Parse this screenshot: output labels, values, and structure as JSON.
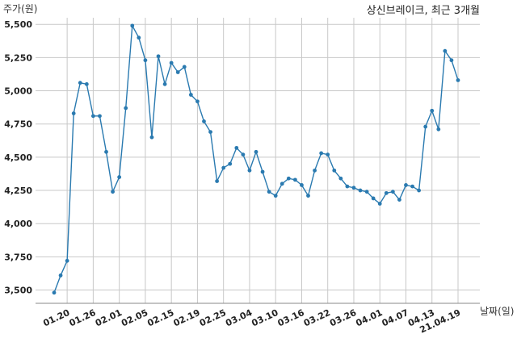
{
  "chart_data": {
    "type": "line",
    "title": "상신브레이크, 최근 3개월",
    "ylabel": "주가(원)",
    "xlabel": "날짜(일)",
    "ylim": [
      3400,
      5550
    ],
    "yticks": [
      "3,500",
      "3,750",
      "4,000",
      "4,250",
      "4,500",
      "4,750",
      "5,000",
      "5,250",
      "5,500"
    ],
    "ytick_values": [
      3500,
      3750,
      4000,
      4250,
      4500,
      4750,
      5000,
      5250,
      5500
    ],
    "xticks": [
      "01.20",
      "01.26",
      "02.01",
      "02.05",
      "02.15",
      "02.19",
      "02.25",
      "03.04",
      "03.10",
      "03.16",
      "03.22",
      "03.26",
      "04.01",
      "04.07",
      "04.13",
      "21.04.19"
    ],
    "xtick_index": [
      2,
      6,
      10,
      14,
      18,
      22,
      26,
      30,
      34,
      38,
      42,
      46,
      50,
      54,
      58,
      62
    ],
    "grid": true,
    "color": "#2a7ab0",
    "series": [
      {
        "values": [
          3480,
          3610,
          3720,
          4830,
          5060,
          5050,
          4810,
          4810,
          4540,
          4240,
          4350,
          4870,
          5490,
          5400,
          5230,
          4650,
          5260,
          5050,
          5210,
          5140,
          5180,
          4970,
          4920,
          4770,
          4690,
          4320,
          4420,
          4450,
          4570,
          4520,
          4400,
          4540,
          4390,
          4240,
          4210,
          4300,
          4340,
          4330,
          4290,
          4210,
          4400,
          4530,
          4520,
          4400,
          4340,
          4280,
          4270,
          4250,
          4240,
          4190,
          4150,
          4230,
          4240,
          4180,
          4290,
          4280,
          4250,
          4730,
          4850,
          4710,
          5300,
          5230,
          5080
        ]
      }
    ]
  }
}
